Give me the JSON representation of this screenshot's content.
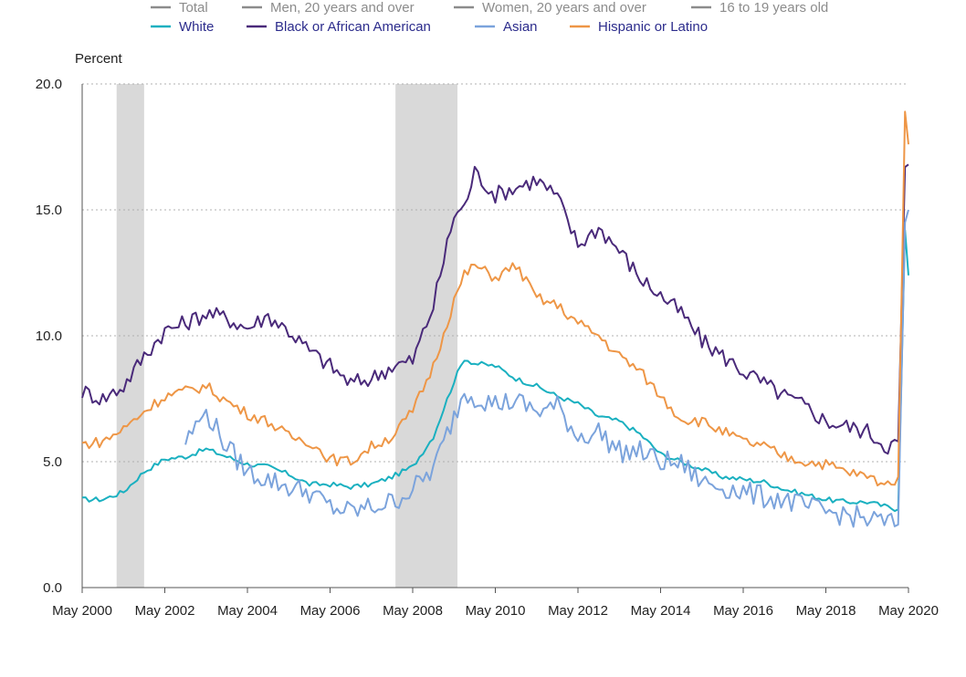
{
  "legend": {
    "items": [
      {
        "label": "Total",
        "color": "#8c8c8c",
        "active": false
      },
      {
        "label": "Men, 20 years and over",
        "color": "#8c8c8c",
        "active": false
      },
      {
        "label": "Women, 20 years and over",
        "color": "#8c8c8c",
        "active": false
      },
      {
        "label": "16 to 19 years old",
        "color": "#8c8c8c",
        "active": false
      },
      {
        "label": "White",
        "color": "#1ab0c0",
        "active": true
      },
      {
        "label": "Black or African American",
        "color": "#4a2a7a",
        "active": true
      },
      {
        "label": "Asian",
        "color": "#7ba3dc",
        "active": true
      },
      {
        "label": "Hispanic or Latino",
        "color": "#ee9646",
        "active": true
      }
    ]
  },
  "chart_data": {
    "type": "line",
    "ylabel": "Percent",
    "ylim": [
      0,
      20
    ],
    "yticks": [
      "0.0",
      "5.0",
      "10.0",
      "15.0",
      "20.0"
    ],
    "xlim": [
      "2000-05",
      "2020-05"
    ],
    "xticks": [
      "May 2000",
      "May 2002",
      "May 2004",
      "May 2006",
      "May 2008",
      "May 2010",
      "May 2012",
      "May 2014",
      "May 2016",
      "May 2018",
      "May 2020"
    ],
    "grid": "horizontal dotted",
    "recessions": [
      {
        "start": "2001-03",
        "end": "2001-11"
      },
      {
        "start": "2007-12",
        "end": "2009-06"
      }
    ],
    "series": [
      {
        "name": "White",
        "color": "#1ab0c0",
        "x": [
          "2000-05",
          "2000-11",
          "2001-05",
          "2001-11",
          "2002-05",
          "2002-11",
          "2003-05",
          "2003-11",
          "2004-05",
          "2004-11",
          "2005-05",
          "2005-11",
          "2006-05",
          "2006-11",
          "2007-05",
          "2007-11",
          "2008-05",
          "2008-11",
          "2009-05",
          "2009-08",
          "2009-11",
          "2010-05",
          "2010-11",
          "2011-05",
          "2011-11",
          "2012-05",
          "2012-11",
          "2013-05",
          "2013-11",
          "2014-05",
          "2014-11",
          "2015-05",
          "2015-11",
          "2016-05",
          "2016-11",
          "2017-05",
          "2017-11",
          "2018-05",
          "2018-11",
          "2019-05",
          "2019-11",
          "2020-02",
          "2020-04",
          "2020-05"
        ],
        "values": [
          3.5,
          3.5,
          3.8,
          4.6,
          5.1,
          5.2,
          5.5,
          5.2,
          4.9,
          4.8,
          4.5,
          4.1,
          4.1,
          4.0,
          4.1,
          4.4,
          4.8,
          6.0,
          8.2,
          9.1,
          8.9,
          8.8,
          8.3,
          8.0,
          7.6,
          7.3,
          6.8,
          6.6,
          6.1,
          5.3,
          5.0,
          4.7,
          4.4,
          4.3,
          4.2,
          3.9,
          3.7,
          3.5,
          3.4,
          3.4,
          3.2,
          3.1,
          14.2,
          12.4
        ]
      },
      {
        "name": "Black or African American",
        "color": "#4a2a7a",
        "x": [
          "2000-05",
          "2000-11",
          "2001-05",
          "2001-11",
          "2002-05",
          "2002-11",
          "2003-05",
          "2003-11",
          "2004-05",
          "2004-11",
          "2005-05",
          "2005-11",
          "2006-05",
          "2006-11",
          "2007-05",
          "2007-11",
          "2008-05",
          "2008-11",
          "2009-05",
          "2009-08",
          "2009-11",
          "2010-05",
          "2010-11",
          "2011-05",
          "2011-11",
          "2012-05",
          "2012-11",
          "2013-05",
          "2013-11",
          "2014-05",
          "2014-11",
          "2015-05",
          "2015-11",
          "2016-05",
          "2016-11",
          "2017-05",
          "2017-11",
          "2018-05",
          "2018-11",
          "2019-05",
          "2019-11",
          "2020-02",
          "2020-04",
          "2020-05"
        ],
        "values": [
          7.8,
          7.5,
          8.0,
          9.2,
          10.2,
          10.5,
          10.9,
          10.7,
          10.3,
          10.8,
          10.2,
          9.4,
          8.8,
          8.1,
          8.3,
          8.8,
          9.0,
          11.2,
          14.8,
          15.1,
          16.5,
          15.6,
          15.9,
          16.2,
          15.5,
          13.6,
          14.3,
          13.4,
          12.3,
          11.6,
          10.9,
          9.8,
          9.2,
          8.6,
          8.1,
          7.6,
          7.2,
          6.6,
          6.4,
          6.2,
          5.6,
          5.8,
          16.7,
          16.8
        ]
      },
      {
        "name": "Asian",
        "color": "#7ba3dc",
        "x": [
          "2002-11",
          "2003-03",
          "2003-05",
          "2003-11",
          "2004-05",
          "2004-11",
          "2005-05",
          "2005-11",
          "2006-05",
          "2006-11",
          "2007-05",
          "2007-11",
          "2008-05",
          "2008-11",
          "2009-05",
          "2009-08",
          "2009-11",
          "2010-05",
          "2010-11",
          "2011-05",
          "2011-11",
          "2012-05",
          "2012-11",
          "2013-05",
          "2013-11",
          "2014-05",
          "2014-11",
          "2015-05",
          "2015-11",
          "2016-05",
          "2016-11",
          "2017-05",
          "2017-11",
          "2018-05",
          "2018-11",
          "2019-05",
          "2019-11",
          "2020-02",
          "2020-04",
          "2020-05"
        ],
        "values": [
          5.8,
          6.6,
          7.0,
          5.6,
          4.6,
          4.3,
          4.0,
          3.8,
          3.2,
          3.0,
          3.2,
          3.4,
          3.9,
          4.7,
          6.8,
          7.8,
          7.6,
          7.3,
          7.4,
          7.0,
          7.2,
          6.0,
          6.2,
          5.4,
          5.4,
          5.0,
          4.9,
          4.2,
          4.0,
          3.8,
          3.6,
          3.5,
          3.2,
          3.0,
          2.9,
          2.7,
          2.6,
          2.5,
          14.5,
          15.0
        ]
      },
      {
        "name": "Hispanic or Latino",
        "color": "#ee9646",
        "x": [
          "2000-05",
          "2000-11",
          "2001-05",
          "2001-11",
          "2002-05",
          "2002-11",
          "2003-05",
          "2003-11",
          "2004-05",
          "2004-11",
          "2005-05",
          "2005-11",
          "2006-05",
          "2006-11",
          "2007-05",
          "2007-11",
          "2008-05",
          "2008-11",
          "2009-05",
          "2009-08",
          "2009-11",
          "2010-05",
          "2010-11",
          "2011-05",
          "2011-11",
          "2012-05",
          "2012-11",
          "2013-05",
          "2013-11",
          "2014-05",
          "2014-11",
          "2015-05",
          "2015-11",
          "2016-05",
          "2016-11",
          "2017-05",
          "2017-11",
          "2018-05",
          "2018-11",
          "2019-05",
          "2019-11",
          "2020-02",
          "2020-04",
          "2020-05"
        ],
        "values": [
          5.7,
          5.8,
          6.3,
          7.0,
          7.6,
          7.8,
          8.0,
          7.4,
          6.9,
          6.6,
          6.0,
          5.8,
          5.1,
          5.0,
          5.6,
          6.0,
          7.0,
          8.8,
          11.4,
          12.4,
          12.8,
          12.3,
          12.8,
          11.5,
          11.2,
          10.5,
          10.0,
          9.2,
          8.6,
          7.6,
          6.7,
          6.6,
          6.2,
          5.8,
          5.6,
          5.2,
          5.0,
          4.9,
          4.6,
          4.4,
          4.1,
          4.4,
          18.9,
          17.6
        ]
      }
    ]
  }
}
